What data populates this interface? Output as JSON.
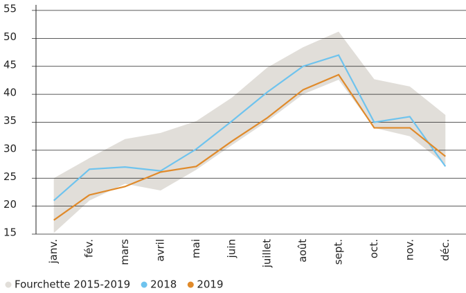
{
  "chart_data": {
    "type": "line",
    "categories": [
      "janv.",
      "fév.",
      "mars",
      "avril",
      "mai",
      "juin",
      "juillet",
      "août",
      "sept.",
      "oct.",
      "nov.",
      "déc."
    ],
    "band": {
      "name": "Fourchette 2015-2019",
      "color": "#e1ded9",
      "lower": [
        15.2,
        21,
        24,
        22.8,
        26.5,
        30.9,
        35.2,
        40,
        42.6,
        34,
        32.5,
        27.4
      ],
      "upper": [
        25,
        28.6,
        32,
        33.1,
        35.2,
        39.4,
        44.8,
        48.4,
        51.2,
        42.7,
        41.4,
        36.3
      ]
    },
    "series": [
      {
        "name": "2018",
        "color": "#6ec3ee",
        "values": [
          21,
          26.6,
          27,
          26.3,
          30.2,
          35.2,
          40.4,
          45,
          47,
          35,
          36,
          27.1
        ]
      },
      {
        "name": "2019",
        "color": "#e08a2a",
        "values": [
          17.5,
          22,
          23.5,
          26.1,
          27.1,
          31.6,
          35.8,
          40.8,
          43.5,
          34,
          34,
          28.9
        ]
      }
    ],
    "ylim": [
      15,
      55
    ],
    "yticks": [
      15,
      20,
      25,
      30,
      35,
      40,
      45,
      50,
      55
    ],
    "grid": true
  }
}
